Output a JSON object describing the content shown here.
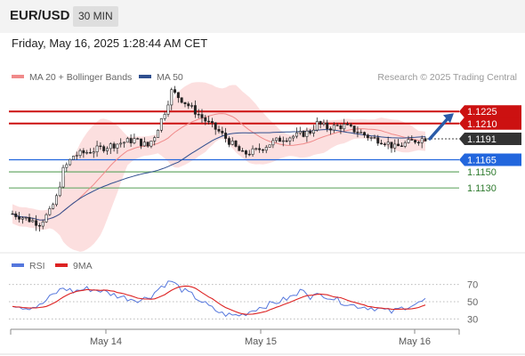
{
  "header": {
    "symbol": "EUR/USD",
    "timeframe": "30 MIN",
    "datetime": "Friday, May 16, 2025 1:28:44 AM CET"
  },
  "colors": {
    "price_line_red": "#cc1111",
    "support_blue": "#2266dd",
    "support_green": "#6aaa6a",
    "candle_up": "#ffffff",
    "candle_down": "#222222",
    "bollinger_fill": "#fcd9d9",
    "ma20": "#f08a8a",
    "ma50": "#2f4f8f",
    "rsi": "#5577dd",
    "rsi_ma": "#dd2222",
    "arrow": "#2a5ba8",
    "current_price_bg": "#333333"
  },
  "chart_data": [
    {
      "type": "candlestick",
      "title": "EUR/USD 30 MIN",
      "legend": [
        "MA 20 + Bollinger Bands",
        "MA 50"
      ],
      "watermark": "Research © 2025 Trading Central",
      "x_labels": [
        "May 14",
        "May 15",
        "May 16"
      ],
      "ylim": [
        1.1065,
        1.1275
      ],
      "levels": [
        {
          "value": 1.1225,
          "label": "1.1225",
          "color": "#cc1111",
          "kind": "resistance"
        },
        {
          "value": 1.121,
          "label": "1.1210",
          "color": "#cc1111",
          "kind": "resistance"
        },
        {
          "value": 1.1191,
          "label": "1.1191",
          "color": "#333333",
          "kind": "current"
        },
        {
          "value": 1.1165,
          "label": "1.1165",
          "color": "#2266dd",
          "kind": "pivot"
        },
        {
          "value": 1.115,
          "label": "1.1150",
          "color": "#6aaa6a",
          "kind": "support"
        },
        {
          "value": 1.113,
          "label": "1.1130",
          "color": "#6aaa6a",
          "kind": "support"
        }
      ],
      "close_anchors": [
        [
          0,
          1.1098
        ],
        [
          4,
          1.1092
        ],
        [
          8,
          1.1086
        ],
        [
          11,
          1.11
        ],
        [
          13,
          1.1118
        ],
        [
          15,
          1.1152
        ],
        [
          18,
          1.117
        ],
        [
          25,
          1.1178
        ],
        [
          31,
          1.1185
        ],
        [
          36,
          1.119
        ],
        [
          40,
          1.1182
        ],
        [
          42,
          1.1195
        ],
        [
          45,
          1.1225
        ],
        [
          47,
          1.125
        ],
        [
          50,
          1.124
        ],
        [
          54,
          1.1225
        ],
        [
          58,
          1.121
        ],
        [
          61,
          1.12
        ],
        [
          64,
          1.1188
        ],
        [
          68,
          1.1172
        ],
        [
          72,
          1.1176
        ],
        [
          76,
          1.1185
        ],
        [
          80,
          1.1192
        ],
        [
          84,
          1.1195
        ],
        [
          88,
          1.12
        ],
        [
          90,
          1.121
        ],
        [
          93,
          1.1205
        ],
        [
          98,
          1.1207
        ],
        [
          102,
          1.12
        ],
        [
          106,
          1.1192
        ],
        [
          110,
          1.1188
        ],
        [
          113,
          1.118
        ],
        [
          116,
          1.1185
        ],
        [
          119,
          1.1189
        ],
        [
          122,
          1.1192
        ]
      ],
      "projection_arrow": {
        "from": 1.1191,
        "to": 1.1225
      }
    },
    {
      "type": "line",
      "title": "RSI",
      "series": [
        {
          "name": "RSI",
          "color": "#5577dd"
        },
        {
          "name": "9MA",
          "color": "#dd2222"
        }
      ],
      "ylim": [
        20,
        80
      ],
      "y_ticks": [
        "70",
        "50",
        "30"
      ],
      "rsi_anchors": [
        [
          0,
          47
        ],
        [
          4,
          43
        ],
        [
          8,
          45
        ],
        [
          12,
          58
        ],
        [
          15,
          66
        ],
        [
          18,
          62
        ],
        [
          22,
          65
        ],
        [
          26,
          63
        ],
        [
          30,
          58
        ],
        [
          34,
          54
        ],
        [
          38,
          52
        ],
        [
          41,
          57
        ],
        [
          44,
          68
        ],
        [
          47,
          74
        ],
        [
          50,
          64
        ],
        [
          53,
          58
        ],
        [
          56,
          50
        ],
        [
          59,
          42
        ],
        [
          62,
          36
        ],
        [
          65,
          34
        ],
        [
          68,
          35
        ],
        [
          72,
          42
        ],
        [
          76,
          47
        ],
        [
          80,
          52
        ],
        [
          84,
          58
        ],
        [
          86,
          66
        ],
        [
          88,
          56
        ],
        [
          92,
          58
        ],
        [
          96,
          52
        ],
        [
          100,
          46
        ],
        [
          104,
          44
        ],
        [
          108,
          42
        ],
        [
          112,
          38
        ],
        [
          116,
          44
        ],
        [
          120,
          48
        ],
        [
          122,
          52
        ]
      ]
    }
  ]
}
